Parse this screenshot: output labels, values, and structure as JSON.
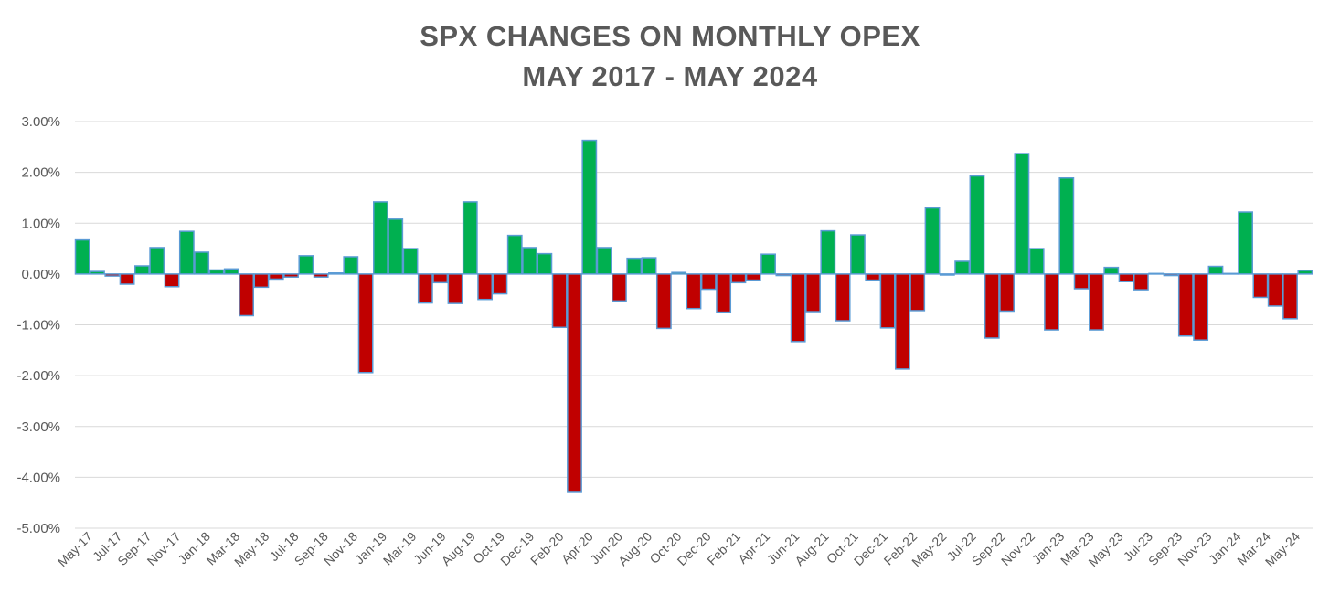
{
  "colors": {
    "positive_fill": "#00b050",
    "negative_fill": "#c00000",
    "bar_stroke": "#5b9bd5",
    "grid": "#d9d9d9",
    "text": "#595959"
  },
  "chart_data": {
    "type": "bar",
    "title": "SPX CHANGES ON MONTHLY OPEX",
    "subtitle": "MAY 2017 - MAY 2024",
    "xlabel": "",
    "ylabel": "",
    "ylim": [
      -5,
      3
    ],
    "y_ticks": [
      "3.00%",
      "2.00%",
      "1.00%",
      "0.00%",
      "-1.00%",
      "-2.00%",
      "-3.00%",
      "-4.00%",
      "-5.00%"
    ],
    "y_tick_values": [
      3,
      2,
      1,
      0,
      -1,
      -2,
      -3,
      -4,
      -5
    ],
    "grid": true,
    "legend": "none",
    "x_tick_labels": [
      "May-17",
      "Jul-17",
      "Sep-17",
      "Nov-17",
      "Jan-18",
      "Mar-18",
      "May-18",
      "Jul-18",
      "Sep-18",
      "Nov-18",
      "Jan-19",
      "Mar-19",
      "Jun-19",
      "Aug-19",
      "Oct-19",
      "Dec-19",
      "Feb-20",
      "Apr-20",
      "Jun-20",
      "Aug-20",
      "Oct-20",
      "Dec-20",
      "Feb-21",
      "Apr-21",
      "Jun-21",
      "Aug-21",
      "Oct-21",
      "Dec-21",
      "Feb-22",
      "May-22",
      "Jul-22",
      "Sep-22",
      "Nov-22",
      "Jan-23",
      "Mar-23",
      "May-23",
      "Jul-23",
      "Sep-23",
      "Nov-23",
      "Jan-24",
      "Mar-24",
      "May-24"
    ],
    "values": [
      0.67,
      0.05,
      -0.04,
      -0.2,
      0.16,
      0.52,
      -0.25,
      0.84,
      0.43,
      0.08,
      0.1,
      -0.82,
      -0.26,
      -0.1,
      -0.06,
      0.36,
      -0.06,
      0.02,
      0.34,
      -1.94,
      1.42,
      1.08,
      0.5,
      -0.57,
      -0.17,
      -0.58,
      1.42,
      -0.5,
      -0.39,
      0.76,
      0.52,
      0.4,
      -1.05,
      -4.28,
      2.63,
      0.52,
      -0.53,
      0.31,
      0.32,
      -1.07,
      0.03,
      -0.68,
      -0.3,
      -0.75,
      -0.17,
      -0.12,
      0.39,
      -0.03,
      -1.33,
      -0.74,
      0.85,
      -0.92,
      0.77,
      -0.12,
      -1.06,
      -1.87,
      -0.72,
      1.3,
      -0.02,
      0.25,
      1.93,
      -1.26,
      -0.73,
      2.37,
      0.5,
      -1.1,
      1.89,
      -0.29,
      -1.1,
      0.13,
      -0.15,
      -0.31,
      0.01,
      -0.03,
      -1.22,
      -1.3,
      0.15,
      0.01,
      1.22,
      -0.46,
      -0.63,
      -0.88,
      0.07
    ]
  }
}
